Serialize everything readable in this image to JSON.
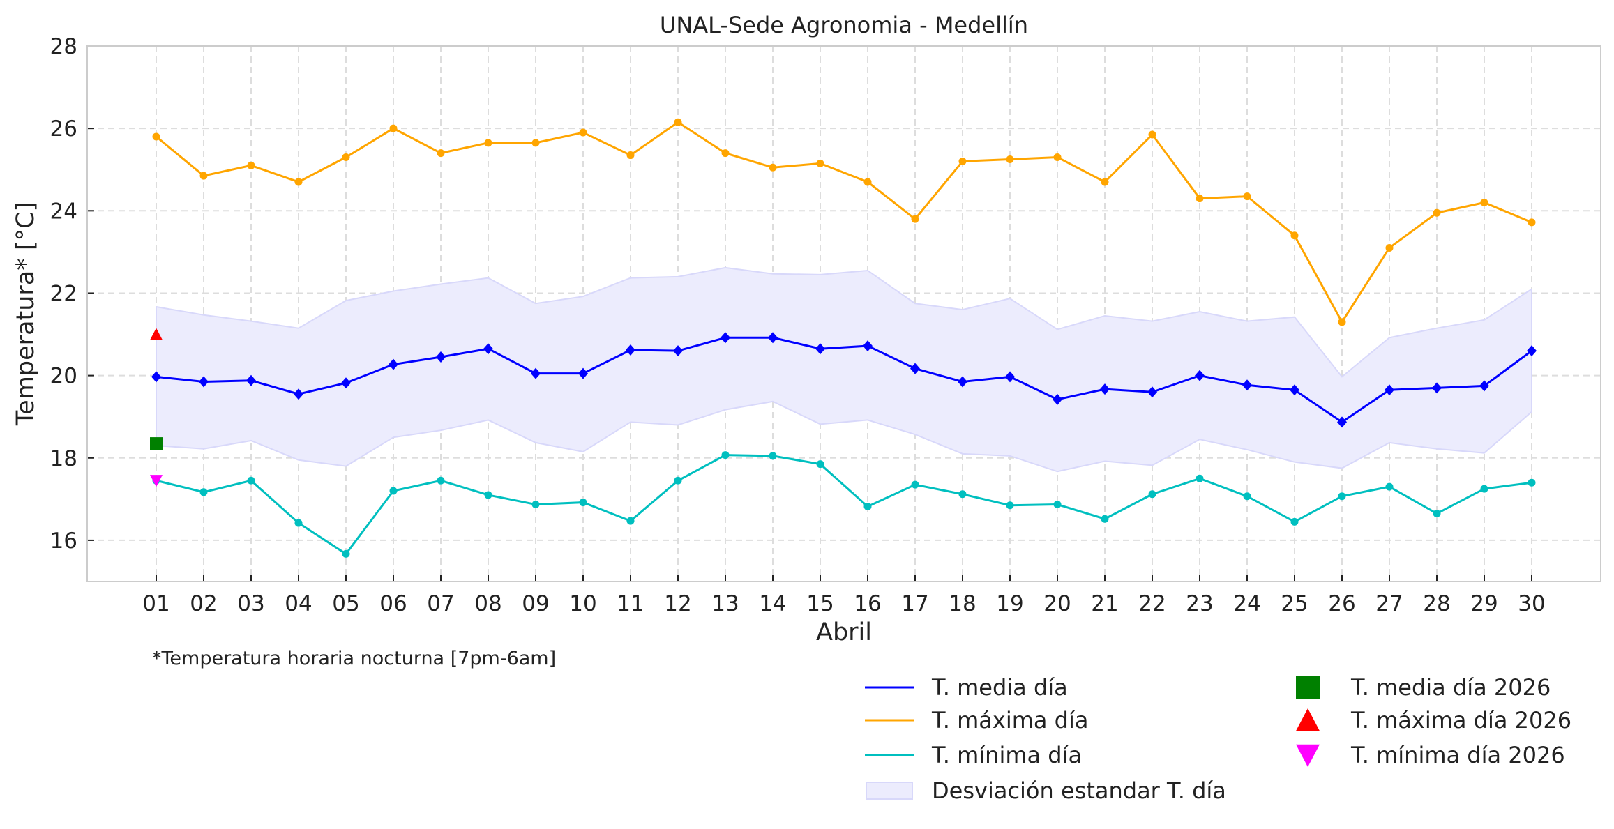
{
  "chart_data": {
    "type": "line",
    "title": "UNAL-Sede Agronomia - Medellín",
    "xlabel": "Abril",
    "ylabel": "Temperatura* [°C]",
    "footnote": "*Temperatura horaria nocturna [7pm-6am]",
    "ylim": [
      15,
      28
    ],
    "yticks": [
      16,
      18,
      20,
      22,
      24,
      26,
      28
    ],
    "grid": true,
    "legend_placement": "bottom-right",
    "x": [
      "01",
      "02",
      "03",
      "04",
      "05",
      "06",
      "07",
      "08",
      "09",
      "10",
      "11",
      "12",
      "13",
      "14",
      "15",
      "16",
      "17",
      "18",
      "19",
      "20",
      "21",
      "22",
      "23",
      "24",
      "25",
      "26",
      "27",
      "28",
      "29",
      "30"
    ],
    "series": [
      {
        "name": "T. media día",
        "color": "#0000ff",
        "marker": "diamond",
        "values": [
          19.97,
          19.85,
          19.88,
          19.55,
          19.82,
          20.27,
          20.45,
          20.65,
          20.05,
          20.05,
          20.62,
          20.6,
          20.92,
          20.92,
          20.65,
          20.72,
          20.17,
          19.85,
          19.97,
          19.42,
          19.67,
          19.6,
          20.0,
          19.77,
          19.65,
          18.87,
          19.65,
          19.7,
          19.75,
          20.6
        ]
      },
      {
        "name": "T. máxima día",
        "color": "#ffa500",
        "marker": "circle",
        "values": [
          25.8,
          24.85,
          25.1,
          24.7,
          25.3,
          26.0,
          25.4,
          25.65,
          25.65,
          25.9,
          25.35,
          26.15,
          25.4,
          25.05,
          25.15,
          24.7,
          23.8,
          25.2,
          25.25,
          25.3,
          24.7,
          25.85,
          24.3,
          24.35,
          23.4,
          21.3,
          23.1,
          23.95,
          24.2,
          23.72
        ]
      },
      {
        "name": "T. mínima día",
        "color": "#00bfbf",
        "marker": "circle",
        "values": [
          17.45,
          17.17,
          17.45,
          16.42,
          15.67,
          17.2,
          17.45,
          17.1,
          16.87,
          16.92,
          16.47,
          17.45,
          18.07,
          18.05,
          17.85,
          16.82,
          17.35,
          17.12,
          16.85,
          16.87,
          16.52,
          17.12,
          17.5,
          17.07,
          16.45,
          17.07,
          17.3,
          16.65,
          17.25,
          17.4
        ]
      }
    ],
    "std_band": {
      "name": "Desviación estandar T. día",
      "color": "#ececfd",
      "upper": [
        21.67,
        21.47,
        21.32,
        21.15,
        21.82,
        22.05,
        22.22,
        22.37,
        21.75,
        21.92,
        22.37,
        22.4,
        22.62,
        22.47,
        22.45,
        22.55,
        21.75,
        21.6,
        21.87,
        21.12,
        21.45,
        21.32,
        21.55,
        21.32,
        21.42,
        19.97,
        20.92,
        21.15,
        21.35,
        22.1
      ],
      "lower": [
        18.3,
        18.22,
        18.42,
        17.95,
        17.8,
        18.5,
        18.67,
        18.92,
        18.37,
        18.15,
        18.87,
        18.8,
        19.17,
        19.37,
        18.82,
        18.92,
        18.57,
        18.1,
        18.05,
        17.67,
        17.92,
        17.82,
        18.45,
        18.2,
        17.9,
        17.75,
        18.37,
        18.22,
        18.12,
        19.12
      ]
    },
    "points_2026": [
      {
        "name": "T. media día 2026",
        "color": "#008000",
        "marker": "square",
        "x": "01",
        "y": 18.35
      },
      {
        "name": "T. máxima día 2026",
        "color": "#ff0000",
        "marker": "triangle-up",
        "x": "01",
        "y": 21.0
      },
      {
        "name": "T. mínima día 2026",
        "color": "#ff00ff",
        "marker": "triangle-down",
        "x": "01",
        "y": 17.45
      }
    ]
  }
}
